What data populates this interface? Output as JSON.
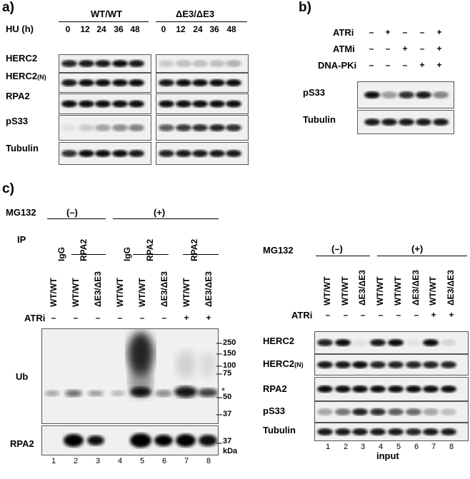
{
  "panel_a": {
    "letter": "a)",
    "group1": "WT/WT",
    "group2": "ΔE3/ΔE3",
    "hu_label": "HU (h)",
    "timepoints": [
      "0",
      "12",
      "24",
      "36",
      "48",
      "0",
      "12",
      "24",
      "36",
      "48"
    ],
    "rows": [
      {
        "main": "HERC2",
        "sub": ""
      },
      {
        "main": "HERC2",
        "sub": "(N)"
      },
      {
        "main": "RPA2",
        "sub": ""
      },
      {
        "main": "pS33",
        "sub": ""
      },
      {
        "main": "Tubulin",
        "sub": ""
      }
    ]
  },
  "panel_b": {
    "letter": "b)",
    "treatments": [
      {
        "label": "ATRi",
        "signs": [
          "–",
          "+",
          "–",
          "–",
          "+"
        ]
      },
      {
        "label": "ATMi",
        "signs": [
          "–",
          "–",
          "+",
          "–",
          "+"
        ]
      },
      {
        "label": "DNA-PKi",
        "signs": [
          "–",
          "–",
          "–",
          "+",
          "+"
        ]
      }
    ],
    "rows": [
      "pS33",
      "Tubulin"
    ]
  },
  "panel_c": {
    "letter": "c)",
    "left": {
      "mg132_label": "MG132",
      "mg_minus": "(–)",
      "mg_plus": "(+)",
      "ip_label": "IP",
      "ip_lanes": [
        "IgG",
        "RPA2",
        "IgG",
        "RPA2",
        "RPA2"
      ],
      "genotypes": [
        "WT/WT",
        "WT/WT",
        "ΔE3/ΔE3",
        "WT/WT",
        "WT/WT",
        "ΔE3/ΔE3",
        "WT/WT",
        "ΔE3/ΔE3"
      ],
      "atri_label": "ATRi",
      "atri_signs": [
        "–",
        "–",
        "–",
        "–",
        "–",
        "–",
        "+",
        "+"
      ],
      "rows": [
        "Ub",
        "RPA2"
      ],
      "markers": [
        "250",
        "150",
        "100",
        "75",
        "50",
        "37",
        "37"
      ],
      "kda": "kDa",
      "asterisk": "*",
      "lanes": [
        "1",
        "2",
        "3",
        "4",
        "5",
        "6",
        "7",
        "8"
      ]
    },
    "right": {
      "mg132_label": "MG132",
      "mg_minus": "(–)",
      "mg_plus": "(+)",
      "genotypes": [
        "WT/WT",
        "WT/WT",
        "ΔE3/ΔE3",
        "WT/WT",
        "WT/WT",
        "ΔE3/ΔE3",
        "WT/WT",
        "ΔE3/ΔE3"
      ],
      "atri_label": "ATRi",
      "atri_signs": [
        "–",
        "–",
        "–",
        "–",
        "–",
        "–",
        "+",
        "+"
      ],
      "rows": [
        {
          "main": "HERC2",
          "sub": ""
        },
        {
          "main": "HERC2",
          "sub": "(N)"
        },
        {
          "main": "RPA2",
          "sub": ""
        },
        {
          "main": "pS33",
          "sub": ""
        },
        {
          "main": "Tubulin",
          "sub": ""
        }
      ],
      "lanes": [
        "1",
        "2",
        "3",
        "4",
        "5",
        "6",
        "7",
        "8"
      ],
      "input_label": "input"
    }
  },
  "colors": {
    "band": "#1a1a1a",
    "blot_bg": "#efefef",
    "text": "#000000"
  }
}
